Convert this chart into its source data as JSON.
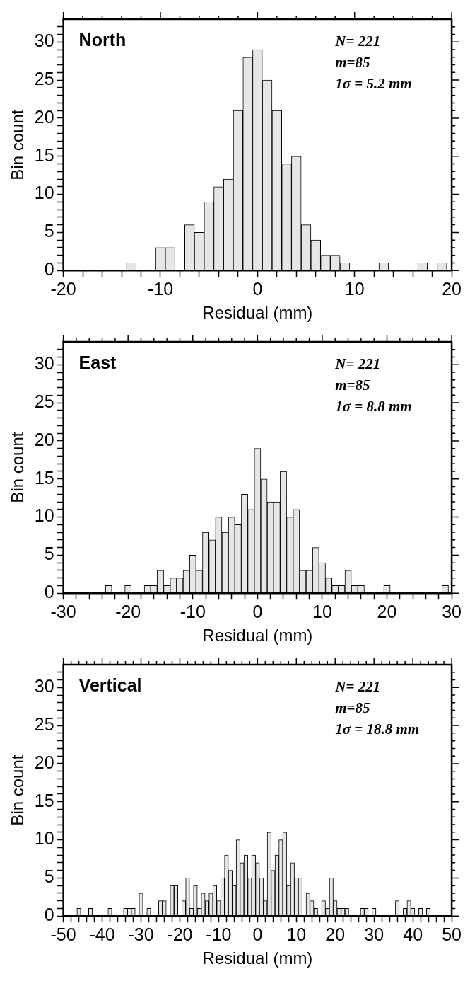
{
  "chart_data": [
    {
      "type": "histogram",
      "title": "North",
      "xlabel": "Residual (mm)",
      "ylabel": "Bin count",
      "annotations": [
        "N= 221",
        "m=85",
        "1σ = 5.2 mm"
      ],
      "color": "#e6e6e6",
      "bins": [
        -13.5,
        -12.5,
        -11.5,
        -10.5,
        -9.5,
        -8.5,
        -7.5,
        -6.5,
        -5.5,
        -4.5,
        -3.5,
        -2.5,
        -1.5,
        -0.5,
        0.5,
        1.5,
        2.5,
        3.5,
        4.5,
        5.5,
        6.5,
        7.5,
        8.5,
        9.5,
        10.5,
        11.5,
        12.5,
        13.5,
        14.5,
        15.5,
        16.5,
        17.5,
        18.5,
        19.5
      ],
      "values": [
        1,
        0,
        0,
        3,
        3,
        0,
        6,
        5,
        9,
        11,
        12,
        21,
        28,
        29,
        25,
        21,
        14,
        15,
        6,
        4,
        2,
        2,
        1,
        0,
        0,
        0,
        1,
        0,
        0,
        0,
        1,
        0,
        1
      ],
      "xlim": [
        -20,
        20
      ],
      "ylim": [
        0,
        33
      ],
      "xticks": [
        -20,
        {
          "value": -18,
          "label": null
        },
        {
          "value": -16,
          "label": null
        },
        {
          "value": -14,
          "label": null
        },
        {
          "value": -12,
          "label": null
        },
        -10,
        {
          "value": -8,
          "label": null
        },
        {
          "value": -6,
          "label": null
        },
        {
          "value": -4,
          "label": null
        },
        {
          "value": -2,
          "label": null
        },
        0,
        {
          "value": 2,
          "label": null
        },
        {
          "value": 4,
          "label": null
        },
        {
          "value": 6,
          "label": null
        },
        {
          "value": 8,
          "label": null
        },
        10,
        {
          "value": 12,
          "label": null
        },
        {
          "value": 14,
          "label": null
        },
        {
          "value": 16,
          "label": null
        },
        {
          "value": 18,
          "label": null
        },
        20
      ],
      "yticks": [
        0,
        {
          "value": 1,
          "label": null
        },
        {
          "value": 2,
          "label": null
        },
        {
          "value": 3,
          "label": null
        },
        {
          "value": 4,
          "label": null
        },
        5,
        {
          "value": 6,
          "label": null
        },
        {
          "value": 7,
          "label": null
        },
        {
          "value": 8,
          "label": null
        },
        {
          "value": 9,
          "label": null
        },
        10,
        {
          "value": 11,
          "label": null
        },
        {
          "value": 12,
          "label": null
        },
        {
          "value": 13,
          "label": null
        },
        {
          "value": 14,
          "label": null
        },
        15,
        {
          "value": 16,
          "label": null
        },
        {
          "value": 17,
          "label": null
        },
        {
          "value": 18,
          "label": null
        },
        {
          "value": 19,
          "label": null
        },
        20,
        {
          "value": 21,
          "label": null
        },
        {
          "value": 22,
          "label": null
        },
        {
          "value": 23,
          "label": null
        },
        {
          "value": 24,
          "label": null
        },
        25,
        {
          "value": 26,
          "label": null
        },
        {
          "value": 27,
          "label": null
        },
        {
          "value": 28,
          "label": null
        },
        {
          "value": 29,
          "label": null
        },
        30,
        {
          "value": 31,
          "label": null
        },
        {
          "value": 32,
          "label": null
        }
      ]
    },
    {
      "type": "histogram",
      "title": "East",
      "xlabel": "Residual (mm)",
      "ylabel": "Bin count",
      "annotations": [
        "N= 221",
        "m=85",
        "1σ = 8.8 mm"
      ],
      "color": "#e6e6e6",
      "bins": [
        -23.5,
        -22.5,
        -21.5,
        -20.5,
        -19.5,
        -18.5,
        -17.5,
        -16.5,
        -15.5,
        -14.5,
        -13.5,
        -12.5,
        -11.5,
        -10.5,
        -9.5,
        -8.5,
        -7.5,
        -6.5,
        -5.5,
        -4.5,
        -3.5,
        -2.5,
        -1.5,
        -0.5,
        0.5,
        1.5,
        2.5,
        3.5,
        4.5,
        5.5,
        6.5,
        7.5,
        8.5,
        9.5,
        10.5,
        11.5,
        12.5,
        13.5,
        14.5,
        15.5,
        16.5,
        17.5,
        18.5,
        19.5,
        20.5,
        21.5,
        22.5,
        23.5,
        24.5,
        25.5,
        26.5,
        27.5,
        28.5,
        29.5
      ],
      "values": [
        1,
        0,
        0,
        1,
        0,
        0,
        1,
        1,
        3,
        1,
        2,
        2,
        3,
        5,
        3,
        8,
        7,
        10,
        8,
        10,
        9,
        13,
        11,
        19,
        15,
        12,
        12,
        16,
        10,
        11,
        3,
        3,
        6,
        4,
        2,
        1,
        1,
        3,
        1,
        1,
        0,
        0,
        0,
        1,
        0,
        0,
        0,
        0,
        0,
        0,
        0,
        0,
        1
      ],
      "xlim": [
        -30,
        30
      ],
      "ylim": [
        0,
        33
      ],
      "xticks": [
        -30,
        {
          "value": -28,
          "label": null
        },
        {
          "value": -26,
          "label": null
        },
        {
          "value": -24,
          "label": null
        },
        {
          "value": -22,
          "label": null
        },
        -20,
        {
          "value": -18,
          "label": null
        },
        {
          "value": -16,
          "label": null
        },
        {
          "value": -14,
          "label": null
        },
        {
          "value": -12,
          "label": null
        },
        -10,
        {
          "value": -8,
          "label": null
        },
        {
          "value": -6,
          "label": null
        },
        {
          "value": -4,
          "label": null
        },
        {
          "value": -2,
          "label": null
        },
        0,
        {
          "value": 2,
          "label": null
        },
        {
          "value": 4,
          "label": null
        },
        {
          "value": 6,
          "label": null
        },
        {
          "value": 8,
          "label": null
        },
        10,
        {
          "value": 12,
          "label": null
        },
        {
          "value": 14,
          "label": null
        },
        {
          "value": 16,
          "label": null
        },
        {
          "value": 18,
          "label": null
        },
        20,
        {
          "value": 22,
          "label": null
        },
        {
          "value": 24,
          "label": null
        },
        {
          "value": 26,
          "label": null
        },
        {
          "value": 28,
          "label": null
        },
        30
      ],
      "yticks": [
        0,
        {
          "value": 1,
          "label": null
        },
        {
          "value": 2,
          "label": null
        },
        {
          "value": 3,
          "label": null
        },
        {
          "value": 4,
          "label": null
        },
        5,
        {
          "value": 6,
          "label": null
        },
        {
          "value": 7,
          "label": null
        },
        {
          "value": 8,
          "label": null
        },
        {
          "value": 9,
          "label": null
        },
        10,
        {
          "value": 11,
          "label": null
        },
        {
          "value": 12,
          "label": null
        },
        {
          "value": 13,
          "label": null
        },
        {
          "value": 14,
          "label": null
        },
        15,
        {
          "value": 16,
          "label": null
        },
        {
          "value": 17,
          "label": null
        },
        {
          "value": 18,
          "label": null
        },
        {
          "value": 19,
          "label": null
        },
        20,
        {
          "value": 21,
          "label": null
        },
        {
          "value": 22,
          "label": null
        },
        {
          "value": 23,
          "label": null
        },
        {
          "value": 24,
          "label": null
        },
        25,
        {
          "value": 26,
          "label": null
        },
        {
          "value": 27,
          "label": null
        },
        {
          "value": 28,
          "label": null
        },
        {
          "value": 29,
          "label": null
        },
        30,
        {
          "value": 31,
          "label": null
        },
        {
          "value": 32,
          "label": null
        }
      ]
    },
    {
      "type": "histogram",
      "title": "Vertical",
      "xlabel": "Residual (mm)",
      "ylabel": "Bin count",
      "annotations": [
        "N= 221",
        "m=85",
        "1σ = 18.8 mm"
      ],
      "color": "#e6e6e6",
      "bins": [
        -46.5,
        -45.5,
        -44.5,
        -43.5,
        -42.5,
        -41.5,
        -40.5,
        -39.5,
        -38.5,
        -37.5,
        -36.5,
        -35.5,
        -34.5,
        -33.5,
        -32.5,
        -31.5,
        -30.5,
        -29.5,
        -28.5,
        -27.5,
        -26.5,
        -25.5,
        -24.5,
        -23.5,
        -22.5,
        -21.5,
        -20.5,
        -19.5,
        -18.5,
        -17.5,
        -16.5,
        -15.5,
        -14.5,
        -13.5,
        -12.5,
        -11.5,
        -10.5,
        -9.5,
        -8.5,
        -7.5,
        -6.5,
        -5.5,
        -4.5,
        -3.5,
        -2.5,
        -1.5,
        -0.5,
        0.5,
        1.5,
        2.5,
        3.5,
        4.5,
        5.5,
        6.5,
        7.5,
        8.5,
        9.5,
        10.5,
        11.5,
        12.5,
        13.5,
        14.5,
        15.5,
        16.5,
        17.5,
        18.5,
        19.5,
        20.5,
        21.5,
        22.5,
        23.5,
        24.5,
        25.5,
        26.5,
        27.5,
        28.5,
        29.5,
        30.5,
        31.5,
        32.5,
        33.5,
        34.5,
        35.5,
        36.5,
        37.5,
        38.5,
        39.5,
        40.5,
        41.5,
        42.5,
        43.5,
        44.5
      ],
      "values": [
        1,
        0,
        0,
        1,
        0,
        0,
        0,
        0,
        1,
        0,
        0,
        0,
        1,
        1,
        1,
        0,
        3,
        0,
        1,
        0,
        0,
        2,
        2,
        0,
        4,
        4,
        0,
        2,
        5,
        1,
        4,
        1,
        3,
        2,
        3,
        4,
        2,
        5,
        8,
        6,
        4,
        10,
        7,
        8,
        5,
        8,
        7,
        5,
        2,
        11,
        6,
        8,
        10,
        11,
        4,
        7,
        5,
        5,
        0,
        3,
        2,
        1,
        0,
        2,
        1,
        5,
        2,
        1,
        1,
        1,
        0,
        0,
        0,
        1,
        1,
        0,
        1,
        0,
        0,
        0,
        0,
        0,
        2,
        0,
        1,
        2,
        1,
        0,
        1,
        0,
        1
      ],
      "xlim": [
        -50,
        50
      ],
      "ylim": [
        0,
        33
      ],
      "xticks": [
        -50,
        {
          "value": -48,
          "label": null
        },
        {
          "value": -46,
          "label": null
        },
        {
          "value": -44,
          "label": null
        },
        {
          "value": -42,
          "label": null
        },
        -40,
        {
          "value": -38,
          "label": null
        },
        {
          "value": -36,
          "label": null
        },
        {
          "value": -34,
          "label": null
        },
        {
          "value": -32,
          "label": null
        },
        -30,
        {
          "value": -28,
          "label": null
        },
        {
          "value": -26,
          "label": null
        },
        {
          "value": -24,
          "label": null
        },
        {
          "value": -22,
          "label": null
        },
        -20,
        {
          "value": -18,
          "label": null
        },
        {
          "value": -16,
          "label": null
        },
        {
          "value": -14,
          "label": null
        },
        {
          "value": -12,
          "label": null
        },
        -10,
        {
          "value": -8,
          "label": null
        },
        {
          "value": -6,
          "label": null
        },
        {
          "value": -4,
          "label": null
        },
        {
          "value": -2,
          "label": null
        },
        0,
        {
          "value": 2,
          "label": null
        },
        {
          "value": 4,
          "label": null
        },
        {
          "value": 6,
          "label": null
        },
        {
          "value": 8,
          "label": null
        },
        10,
        {
          "value": 12,
          "label": null
        },
        {
          "value": 14,
          "label": null
        },
        {
          "value": 16,
          "label": null
        },
        {
          "value": 18,
          "label": null
        },
        20,
        {
          "value": 22,
          "label": null
        },
        {
          "value": 24,
          "label": null
        },
        {
          "value": 26,
          "label": null
        },
        {
          "value": 28,
          "label": null
        },
        30,
        {
          "value": 32,
          "label": null
        },
        {
          "value": 34,
          "label": null
        },
        {
          "value": 36,
          "label": null
        },
        {
          "value": 38,
          "label": null
        },
        40,
        {
          "value": 42,
          "label": null
        },
        {
          "value": 44,
          "label": null
        },
        {
          "value": 46,
          "label": null
        },
        {
          "value": 48,
          "label": null
        },
        50
      ],
      "yticks": [
        0,
        {
          "value": 1,
          "label": null
        },
        {
          "value": 2,
          "label": null
        },
        {
          "value": 3,
          "label": null
        },
        {
          "value": 4,
          "label": null
        },
        5,
        {
          "value": 6,
          "label": null
        },
        {
          "value": 7,
          "label": null
        },
        {
          "value": 8,
          "label": null
        },
        {
          "value": 9,
          "label": null
        },
        10,
        {
          "value": 11,
          "label": null
        },
        {
          "value": 12,
          "label": null
        },
        {
          "value": 13,
          "label": null
        },
        {
          "value": 14,
          "label": null
        },
        15,
        {
          "value": 16,
          "label": null
        },
        {
          "value": 17,
          "label": null
        },
        {
          "value": 18,
          "label": null
        },
        {
          "value": 19,
          "label": null
        },
        20,
        {
          "value": 21,
          "label": null
        },
        {
          "value": 22,
          "label": null
        },
        {
          "value": 23,
          "label": null
        },
        {
          "value": 24,
          "label": null
        },
        25,
        {
          "value": 26,
          "label": null
        },
        {
          "value": 27,
          "label": null
        },
        {
          "value": 28,
          "label": null
        },
        {
          "value": 29,
          "label": null
        },
        30,
        {
          "value": 31,
          "label": null
        },
        {
          "value": 32,
          "label": null
        }
      ]
    }
  ]
}
